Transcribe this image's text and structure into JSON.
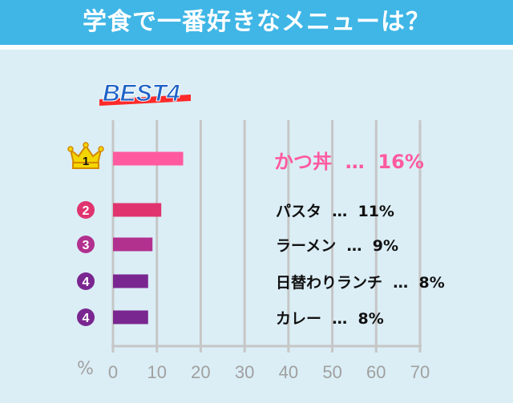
{
  "header": {
    "title": "学食で一番好きなメニューは？"
  },
  "badge": {
    "text": "BEST4"
  },
  "axis": {
    "percent_sign": "%"
  },
  "colors": {
    "header_bg": "#3fb6e6",
    "panel_bg": "#dbeef6",
    "grid": "#c6c6c6",
    "first_label": "#ff5aa0"
  },
  "chart_data": {
    "type": "bar",
    "orientation": "horizontal",
    "title": "学食で一番好きなメニューは？",
    "xlim": [
      0,
      70
    ],
    "xticks": [
      "0",
      "10",
      "20",
      "30",
      "40",
      "50",
      "60",
      "70"
    ],
    "grid": true,
    "bars": [
      {
        "rank": "1",
        "label": "かつ丼",
        "sep": "…",
        "pct": "16%",
        "value": 16,
        "color": "#ff5aa0",
        "badge": "crown"
      },
      {
        "rank": "2",
        "label": "パスタ",
        "sep": "…",
        "pct": "11%",
        "value": 11,
        "color": "#e0346f",
        "badge": "circle"
      },
      {
        "rank": "3",
        "label": "ラーメン",
        "sep": "…",
        "pct": "9%",
        "value": 9,
        "color": "#b2308e",
        "badge": "circle"
      },
      {
        "rank": "4",
        "label": "日替わりランチ",
        "sep": "…",
        "pct": "8%",
        "value": 8,
        "color": "#7a2690",
        "badge": "circle"
      },
      {
        "rank": "4",
        "label": "カレー",
        "sep": "…",
        "pct": "8%",
        "value": 8,
        "color": "#7a2690",
        "badge": "circle"
      }
    ]
  }
}
